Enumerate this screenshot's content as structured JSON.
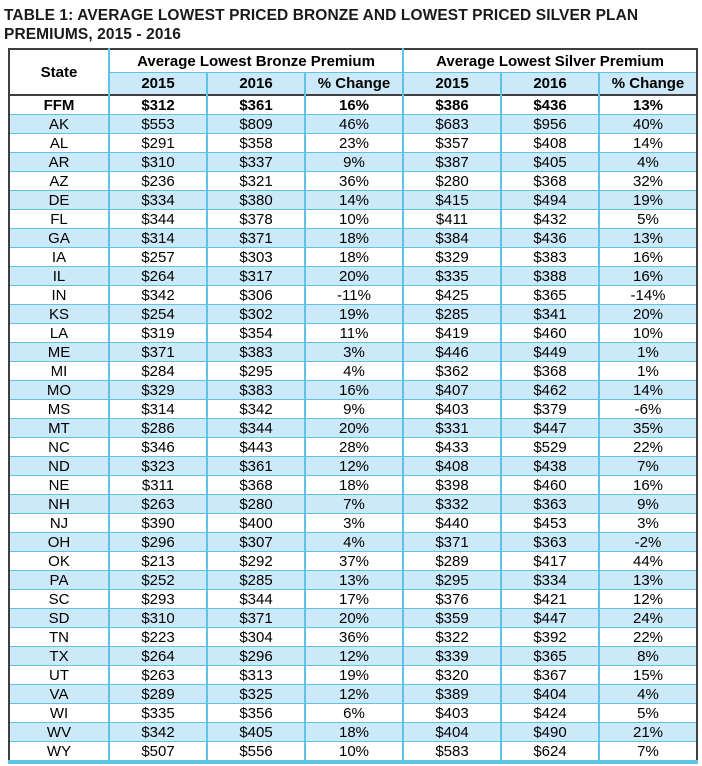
{
  "title": "TABLE 1: AVERAGE LOWEST PRICED BRONZE AND LOWEST PRICED SILVER PLAN PREMIUMS, 2015 - 2016",
  "colors": {
    "grid_line": "#5FC3E8",
    "alt_row_background": "#CBE9F8",
    "outer_border": "#3F3F3F",
    "text": "#000000"
  },
  "table": {
    "state_header": "State",
    "group_headers": [
      "Average Lowest Bronze Premium",
      "Average Lowest Silver Premium"
    ],
    "sub_headers": [
      "2015",
      "2016",
      "% Change"
    ],
    "rows": [
      {
        "state": "FFM",
        "bold": true,
        "values": [
          "$312",
          "$361",
          "16%",
          "$386",
          "$436",
          "13%"
        ]
      },
      {
        "state": "AK",
        "values": [
          "$553",
          "$809",
          "46%",
          "$683",
          "$956",
          "40%"
        ]
      },
      {
        "state": "AL",
        "values": [
          "$291",
          "$358",
          "23%",
          "$357",
          "$408",
          "14%"
        ]
      },
      {
        "state": "AR",
        "values": [
          "$310",
          "$337",
          "9%",
          "$387",
          "$405",
          "4%"
        ]
      },
      {
        "state": "AZ",
        "values": [
          "$236",
          "$321",
          "36%",
          "$280",
          "$368",
          "32%"
        ]
      },
      {
        "state": "DE",
        "values": [
          "$334",
          "$380",
          "14%",
          "$415",
          "$494",
          "19%"
        ]
      },
      {
        "state": "FL",
        "values": [
          "$344",
          "$378",
          "10%",
          "$411",
          "$432",
          "5%"
        ]
      },
      {
        "state": "GA",
        "values": [
          "$314",
          "$371",
          "18%",
          "$384",
          "$436",
          "13%"
        ]
      },
      {
        "state": "IA",
        "values": [
          "$257",
          "$303",
          "18%",
          "$329",
          "$383",
          "16%"
        ]
      },
      {
        "state": "IL",
        "values": [
          "$264",
          "$317",
          "20%",
          "$335",
          "$388",
          "16%"
        ]
      },
      {
        "state": "IN",
        "values": [
          "$342",
          "$306",
          "-11%",
          "$425",
          "$365",
          "-14%"
        ]
      },
      {
        "state": "KS",
        "values": [
          "$254",
          "$302",
          "19%",
          "$285",
          "$341",
          "20%"
        ]
      },
      {
        "state": "LA",
        "values": [
          "$319",
          "$354",
          "11%",
          "$419",
          "$460",
          "10%"
        ]
      },
      {
        "state": "ME",
        "values": [
          "$371",
          "$383",
          "3%",
          "$446",
          "$449",
          "1%"
        ]
      },
      {
        "state": "MI",
        "values": [
          "$284",
          "$295",
          "4%",
          "$362",
          "$368",
          "1%"
        ]
      },
      {
        "state": "MO",
        "values": [
          "$329",
          "$383",
          "16%",
          "$407",
          "$462",
          "14%"
        ]
      },
      {
        "state": "MS",
        "values": [
          "$314",
          "$342",
          "9%",
          "$403",
          "$379",
          "-6%"
        ]
      },
      {
        "state": "MT",
        "values": [
          "$286",
          "$344",
          "20%",
          "$331",
          "$447",
          "35%"
        ]
      },
      {
        "state": "NC",
        "values": [
          "$346",
          "$443",
          "28%",
          "$433",
          "$529",
          "22%"
        ]
      },
      {
        "state": "ND",
        "values": [
          "$323",
          "$361",
          "12%",
          "$408",
          "$438",
          "7%"
        ]
      },
      {
        "state": "NE",
        "values": [
          "$311",
          "$368",
          "18%",
          "$398",
          "$460",
          "16%"
        ]
      },
      {
        "state": "NH",
        "values": [
          "$263",
          "$280",
          "7%",
          "$332",
          "$363",
          "9%"
        ]
      },
      {
        "state": "NJ",
        "values": [
          "$390",
          "$400",
          "3%",
          "$440",
          "$453",
          "3%"
        ]
      },
      {
        "state": "OH",
        "values": [
          "$296",
          "$307",
          "4%",
          "$371",
          "$363",
          "-2%"
        ]
      },
      {
        "state": "OK",
        "values": [
          "$213",
          "$292",
          "37%",
          "$289",
          "$417",
          "44%"
        ]
      },
      {
        "state": "PA",
        "values": [
          "$252",
          "$285",
          "13%",
          "$295",
          "$334",
          "13%"
        ]
      },
      {
        "state": "SC",
        "values": [
          "$293",
          "$344",
          "17%",
          "$376",
          "$421",
          "12%"
        ]
      },
      {
        "state": "SD",
        "values": [
          "$310",
          "$371",
          "20%",
          "$359",
          "$447",
          "24%"
        ]
      },
      {
        "state": "TN",
        "values": [
          "$223",
          "$304",
          "36%",
          "$322",
          "$392",
          "22%"
        ]
      },
      {
        "state": "TX",
        "values": [
          "$264",
          "$296",
          "12%",
          "$339",
          "$365",
          "8%"
        ]
      },
      {
        "state": "UT",
        "values": [
          "$263",
          "$313",
          "19%",
          "$320",
          "$367",
          "15%"
        ]
      },
      {
        "state": "VA",
        "values": [
          "$289",
          "$325",
          "12%",
          "$389",
          "$404",
          "4%"
        ]
      },
      {
        "state": "WI",
        "values": [
          "$335",
          "$356",
          "6%",
          "$403",
          "$424",
          "5%"
        ]
      },
      {
        "state": "WV",
        "values": [
          "$342",
          "$405",
          "18%",
          "$404",
          "$490",
          "21%"
        ]
      },
      {
        "state": "WY",
        "values": [
          "$507",
          "$556",
          "10%",
          "$583",
          "$624",
          "7%"
        ]
      }
    ]
  }
}
